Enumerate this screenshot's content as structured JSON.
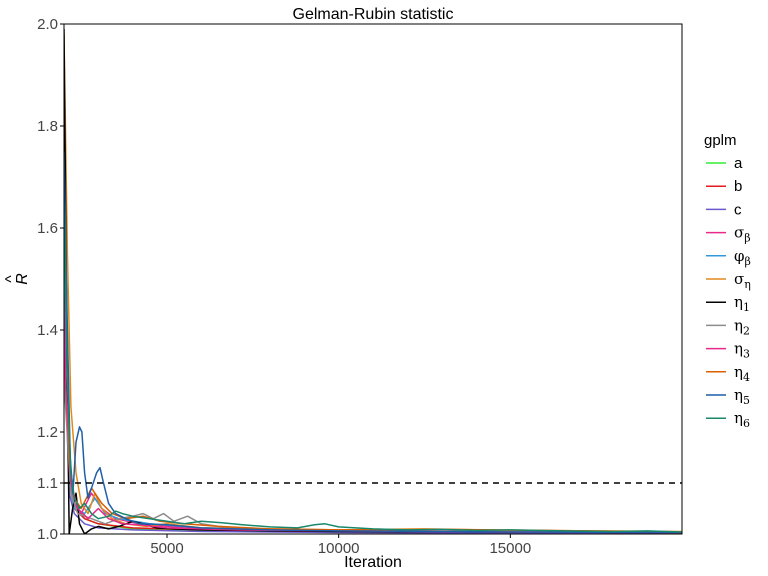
{
  "chart_data": {
    "type": "line",
    "title": "Gelman-Rubin statistic",
    "xlabel": "Iteration",
    "ylabel": "R",
    "ylabel_accent": "^",
    "xlim": [
      2000,
      20000
    ],
    "ylim": [
      1.0,
      2.0
    ],
    "x_ticks": [
      5000,
      10000,
      15000
    ],
    "y_ticks": [
      "1.0",
      "1.1",
      "1.2",
      "1.4",
      "1.6",
      "1.8",
      "2.0"
    ],
    "reference_line": {
      "y": 1.1,
      "style": "dashed"
    },
    "legend": {
      "title": "gplm",
      "position": "right"
    },
    "grid": false,
    "series": [
      {
        "name": "a",
        "sym": "a",
        "sub": "",
        "color": "#33ee33",
        "points": [
          [
            2000,
            1.55
          ],
          [
            2150,
            1.12
          ],
          [
            2300,
            1.06
          ],
          [
            2600,
            1.03
          ],
          [
            3000,
            1.02
          ],
          [
            4000,
            1.01
          ],
          [
            6000,
            1.006
          ],
          [
            10000,
            1.004
          ],
          [
            15000,
            1.003
          ],
          [
            20000,
            1.002
          ]
        ]
      },
      {
        "name": "b",
        "sym": "b",
        "sub": "",
        "color": "#e41a1c",
        "points": [
          [
            2000,
            1.5
          ],
          [
            2150,
            1.1
          ],
          [
            2300,
            1.05
          ],
          [
            2600,
            1.03
          ],
          [
            3000,
            1.02
          ],
          [
            4000,
            1.012
          ],
          [
            6000,
            1.008
          ],
          [
            10000,
            1.005
          ],
          [
            15000,
            1.004
          ],
          [
            20000,
            1.003
          ]
        ]
      },
      {
        "name": "c",
        "sym": "c",
        "sub": "",
        "color": "#6a5acd",
        "points": [
          [
            2000,
            1.4
          ],
          [
            2150,
            1.08
          ],
          [
            2300,
            1.04
          ],
          [
            2600,
            1.02
          ],
          [
            3000,
            1.012
          ],
          [
            4000,
            1.008
          ],
          [
            6000,
            1.005
          ],
          [
            10000,
            1.003
          ],
          [
            15000,
            1.002
          ],
          [
            20000,
            1.002
          ]
        ]
      },
      {
        "name": "σβ",
        "sym": "σ",
        "sub": "β",
        "color": "#e7298a",
        "points": [
          [
            2000,
            1.45
          ],
          [
            2150,
            1.12
          ],
          [
            2300,
            1.06
          ],
          [
            2500,
            1.04
          ],
          [
            2800,
            1.08
          ],
          [
            3100,
            1.05
          ],
          [
            3500,
            1.03
          ],
          [
            4200,
            1.02
          ],
          [
            5500,
            1.012
          ],
          [
            8000,
            1.008
          ],
          [
            12000,
            1.005
          ],
          [
            20000,
            1.004
          ]
        ]
      },
      {
        "name": "φβ",
        "sym": "φ",
        "sub": "β",
        "color": "#3399dd",
        "points": [
          [
            2000,
            1.6
          ],
          [
            2150,
            1.1
          ],
          [
            2300,
            1.05
          ],
          [
            2600,
            1.04
          ],
          [
            2900,
            1.07
          ],
          [
            3200,
            1.04
          ],
          [
            3600,
            1.03
          ],
          [
            4500,
            1.02
          ],
          [
            6000,
            1.012
          ],
          [
            9000,
            1.008
          ],
          [
            14000,
            1.005
          ],
          [
            20000,
            1.004
          ]
        ]
      },
      {
        "name": "ση",
        "sym": "σ",
        "sub": "η",
        "color": "#e08a1e",
        "points": [
          [
            2000,
            1.98
          ],
          [
            2100,
            1.55
          ],
          [
            2200,
            1.25
          ],
          [
            2350,
            1.12
          ],
          [
            2500,
            1.06
          ],
          [
            2700,
            1.04
          ],
          [
            2900,
            1.08
          ],
          [
            3100,
            1.05
          ],
          [
            3400,
            1.03
          ],
          [
            3800,
            1.02
          ],
          [
            4400,
            1.015
          ],
          [
            5000,
            1.02
          ],
          [
            6000,
            1.012
          ],
          [
            8000,
            1.01
          ],
          [
            10000,
            1.008
          ],
          [
            12500,
            1.01
          ],
          [
            15000,
            1.007
          ],
          [
            17500,
            1.006
          ],
          [
            20000,
            1.005
          ]
        ]
      },
      {
        "name": "η1",
        "sym": "η",
        "sub": "1",
        "color": "#000000",
        "points": [
          [
            2000,
            1.99
          ],
          [
            2080,
            1.4
          ],
          [
            2150,
            1.0
          ],
          [
            2250,
            1.05
          ],
          [
            2350,
            1.08
          ],
          [
            2450,
            1.02
          ],
          [
            2600,
            1.0
          ],
          [
            2800,
            1.01
          ],
          [
            3000,
            1.015
          ],
          [
            3300,
            1.01
          ],
          [
            3600,
            1.015
          ],
          [
            4000,
            1.025
          ],
          [
            4300,
            1.02
          ],
          [
            4700,
            1.012
          ],
          [
            5200,
            1.01
          ],
          [
            6000,
            1.008
          ],
          [
            8000,
            1.006
          ],
          [
            10000,
            1.005
          ],
          [
            15000,
            1.004
          ],
          [
            20000,
            1.003
          ]
        ]
      },
      {
        "name": "η2",
        "sym": "η",
        "sub": "2",
        "color": "#8c8c8c",
        "points": [
          [
            2000,
            1.3
          ],
          [
            2200,
            1.08
          ],
          [
            2400,
            1.04
          ],
          [
            2800,
            1.03
          ],
          [
            3200,
            1.02
          ],
          [
            3600,
            1.03
          ],
          [
            4000,
            1.035
          ],
          [
            4300,
            1.04
          ],
          [
            4600,
            1.03
          ],
          [
            4900,
            1.04
          ],
          [
            5200,
            1.025
          ],
          [
            5600,
            1.035
          ],
          [
            6000,
            1.02
          ],
          [
            6500,
            1.015
          ],
          [
            7500,
            1.01
          ],
          [
            9000,
            1.008
          ],
          [
            12000,
            1.006
          ],
          [
            16000,
            1.004
          ],
          [
            20000,
            1.003
          ]
        ]
      },
      {
        "name": "η3",
        "sym": "η",
        "sub": "3",
        "color": "#e7298a",
        "points": [
          [
            2000,
            1.35
          ],
          [
            2200,
            1.1
          ],
          [
            2400,
            1.05
          ],
          [
            2700,
            1.03
          ],
          [
            3000,
            1.05
          ],
          [
            3300,
            1.03
          ],
          [
            3700,
            1.02
          ],
          [
            4200,
            1.018
          ],
          [
            5000,
            1.012
          ],
          [
            7000,
            1.008
          ],
          [
            10000,
            1.006
          ],
          [
            15000,
            1.004
          ],
          [
            20000,
            1.003
          ]
        ]
      },
      {
        "name": "η4",
        "sym": "η",
        "sub": "4",
        "color": "#d95f02",
        "points": [
          [
            2000,
            1.7
          ],
          [
            2150,
            1.15
          ],
          [
            2300,
            1.07
          ],
          [
            2500,
            1.05
          ],
          [
            2800,
            1.09
          ],
          [
            3100,
            1.06
          ],
          [
            3400,
            1.04
          ],
          [
            3800,
            1.03
          ],
          [
            4300,
            1.035
          ],
          [
            4800,
            1.025
          ],
          [
            5500,
            1.02
          ],
          [
            6500,
            1.015
          ],
          [
            8000,
            1.01
          ],
          [
            10000,
            1.008
          ],
          [
            13000,
            1.009
          ],
          [
            16000,
            1.007
          ],
          [
            20000,
            1.004
          ]
        ]
      },
      {
        "name": "η5",
        "sym": "η",
        "sub": "5",
        "color": "#1f5fa8",
        "points": [
          [
            2000,
            1.75
          ],
          [
            2100,
            1.4
          ],
          [
            2180,
            1.15
          ],
          [
            2260,
            1.08
          ],
          [
            2350,
            1.18
          ],
          [
            2450,
            1.21
          ],
          [
            2520,
            1.2
          ],
          [
            2600,
            1.12
          ],
          [
            2700,
            1.07
          ],
          [
            2800,
            1.09
          ],
          [
            2950,
            1.12
          ],
          [
            3050,
            1.13
          ],
          [
            3150,
            1.1
          ],
          [
            3300,
            1.06
          ],
          [
            3500,
            1.04
          ],
          [
            3800,
            1.03
          ],
          [
            4200,
            1.02
          ],
          [
            5000,
            1.018
          ],
          [
            6000,
            1.012
          ],
          [
            8000,
            1.008
          ],
          [
            10000,
            1.006
          ],
          [
            15000,
            1.004
          ],
          [
            20000,
            1.003
          ]
        ]
      },
      {
        "name": "η6",
        "sym": "η",
        "sub": "6",
        "color": "#18876b",
        "points": [
          [
            2000,
            1.65
          ],
          [
            2100,
            1.3
          ],
          [
            2200,
            1.12
          ],
          [
            2300,
            1.07
          ],
          [
            2450,
            1.05
          ],
          [
            2600,
            1.06
          ],
          [
            2800,
            1.04
          ],
          [
            3000,
            1.03
          ],
          [
            3300,
            1.035
          ],
          [
            3500,
            1.045
          ],
          [
            3700,
            1.04
          ],
          [
            4000,
            1.035
          ],
          [
            4500,
            1.03
          ],
          [
            5000,
            1.025
          ],
          [
            5500,
            1.02
          ],
          [
            6000,
            1.025
          ],
          [
            6600,
            1.022
          ],
          [
            7200,
            1.018
          ],
          [
            8000,
            1.014
          ],
          [
            8800,
            1.012
          ],
          [
            9300,
            1.018
          ],
          [
            9600,
            1.02
          ],
          [
            10000,
            1.014
          ],
          [
            11000,
            1.01
          ],
          [
            12000,
            1.008
          ],
          [
            13000,
            1.009
          ],
          [
            14000,
            1.007
          ],
          [
            15000,
            1.008
          ],
          [
            16500,
            1.006
          ],
          [
            18000,
            1.005
          ],
          [
            19000,
            1.006
          ],
          [
            20000,
            1.004
          ]
        ]
      }
    ]
  }
}
